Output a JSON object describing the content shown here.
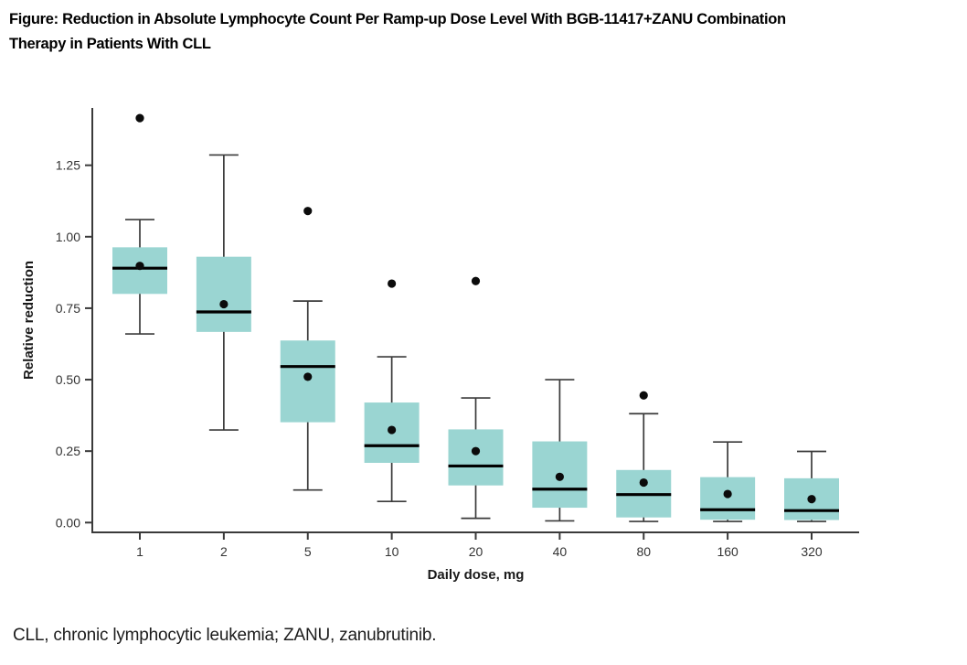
{
  "figure": {
    "title_line1": "Figure: Reduction in Absolute Lymphocyte Count Per Ramp-up Dose Level With BGB-11417+ZANU Combination",
    "title_line2": "Therapy in Patients With CLL",
    "footnote": "CLL, chronic lymphocytic leukemia; ZANU, zanubrutinib."
  },
  "chart_data": {
    "type": "box",
    "title": "Reduction in Absolute Lymphocyte Count Per Ramp-up Dose Level",
    "xlabel": "Daily dose, mg",
    "ylabel": "Relative reduction",
    "categories": [
      "1",
      "2",
      "5",
      "10",
      "20",
      "40",
      "80",
      "160",
      "320"
    ],
    "y_tick_labels": [
      "0.00",
      "0.25",
      "0.50",
      "0.75",
      "1.00",
      "1.25"
    ],
    "y_tick_values": [
      0.0,
      0.25,
      0.5,
      0.75,
      1.0,
      1.25
    ],
    "ylim": [
      -0.034,
      1.45
    ],
    "grid": false,
    "legend": "none",
    "colors": {
      "box_fill": "#9AD5D2",
      "axis_line": "#3A3A3A",
      "whisker_line": "#3A3A3A",
      "median_line": "#000000",
      "point": "#0B0B0B",
      "tick_text": "#333333",
      "axis_title_text": "#1A1A1A"
    },
    "boxes": [
      {
        "category": "1",
        "whisker_low": 0.66,
        "q1": 0.8,
        "median": 0.89,
        "q3": 0.963,
        "whisker_high": 1.06,
        "mean": 0.898,
        "outliers": [
          1.415
        ]
      },
      {
        "category": "2",
        "whisker_low": 0.324,
        "q1": 0.667,
        "median": 0.737,
        "q3": 0.93,
        "whisker_high": 1.286,
        "mean": 0.764,
        "outliers": []
      },
      {
        "category": "5",
        "whisker_low": 0.114,
        "q1": 0.351,
        "median": 0.546,
        "q3": 0.637,
        "whisker_high": 0.775,
        "mean": 0.51,
        "outliers": [
          1.09
        ]
      },
      {
        "category": "10",
        "whisker_low": 0.074,
        "q1": 0.209,
        "median": 0.269,
        "q3": 0.42,
        "whisker_high": 0.58,
        "mean": 0.324,
        "outliers": [
          0.836
        ]
      },
      {
        "category": "20",
        "whisker_low": 0.015,
        "q1": 0.13,
        "median": 0.198,
        "q3": 0.326,
        "whisker_high": 0.436,
        "mean": 0.25,
        "outliers": [
          0.845
        ]
      },
      {
        "category": "40",
        "whisker_low": 0.006,
        "q1": 0.052,
        "median": 0.117,
        "q3": 0.284,
        "whisker_high": 0.5,
        "mean": 0.16,
        "outliers": []
      },
      {
        "category": "80",
        "whisker_low": 0.004,
        "q1": 0.018,
        "median": 0.098,
        "q3": 0.184,
        "whisker_high": 0.381,
        "mean": 0.14,
        "outliers": [
          0.445
        ]
      },
      {
        "category": "160",
        "whisker_low": 0.004,
        "q1": 0.01,
        "median": 0.045,
        "q3": 0.159,
        "whisker_high": 0.282,
        "mean": 0.1,
        "outliers": []
      },
      {
        "category": "320",
        "whisker_low": 0.004,
        "q1": 0.009,
        "median": 0.042,
        "q3": 0.155,
        "whisker_high": 0.249,
        "mean": 0.082,
        "outliers": []
      }
    ]
  }
}
